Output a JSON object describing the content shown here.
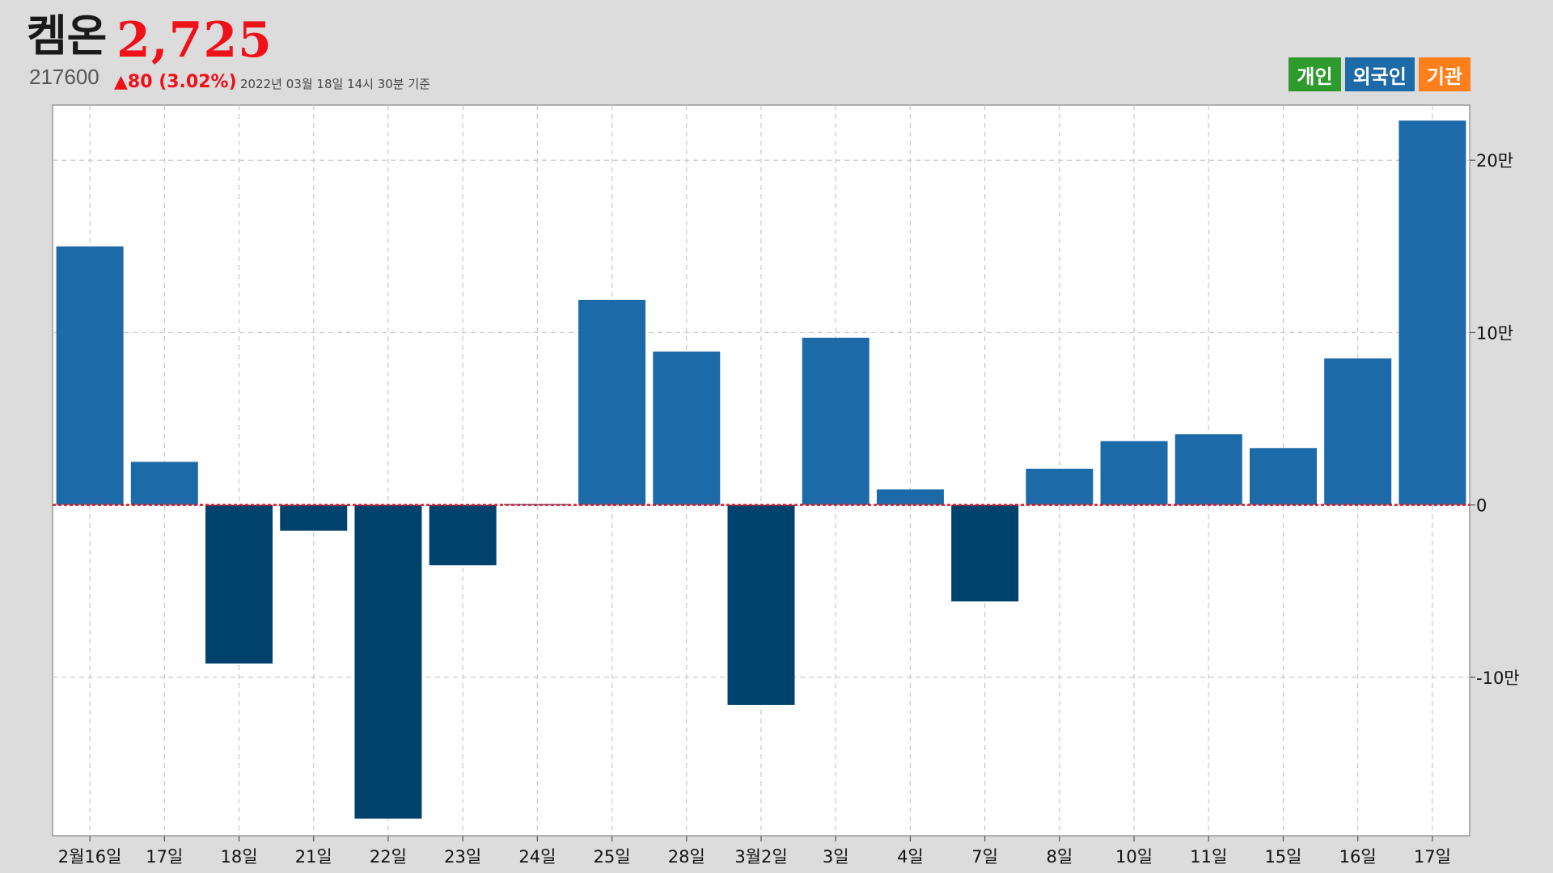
{
  "header": {
    "stock_name": "켐온",
    "price": "2,725",
    "code": "217600",
    "change": "▲80 (3.02%)",
    "timestamp": "2022년 03월 18일 14시 30분 기준"
  },
  "legend": [
    {
      "label": "개인",
      "color": "#2e9a2e"
    },
    {
      "label": "외국인",
      "color": "#1c6aa8"
    },
    {
      "label": "기관",
      "color": "#ff7f1a"
    }
  ],
  "chart_data": {
    "type": "bar",
    "title": "",
    "xlabel": "",
    "ylabel": "",
    "series_name": "외국인",
    "categories": [
      "2월16일",
      "17일",
      "18일",
      "21일",
      "22일",
      "23일",
      "24일",
      "25일",
      "28일",
      "3월2일",
      "3일",
      "4일",
      "7일",
      "8일",
      "10일",
      "11일",
      "15일",
      "16일",
      "17일"
    ],
    "values": [
      150000,
      25000,
      -92000,
      -15000,
      -182000,
      -35000,
      500,
      119000,
      89000,
      -116000,
      97000,
      9000,
      -56000,
      21000,
      37000,
      41000,
      33000,
      85000,
      223000
    ],
    "ylim": [
      -192000,
      232000
    ],
    "yticks": [
      -100000,
      0,
      100000,
      200000
    ],
    "ytick_labels": [
      "-10만",
      "0",
      "10만",
      "20만"
    ],
    "y_axis_position": "right",
    "grid": true,
    "zero_line_color": "#e8101a",
    "colors": {
      "positive": "#1c6aa8",
      "negative": "#00426b"
    },
    "legend_position": "top-right"
  }
}
